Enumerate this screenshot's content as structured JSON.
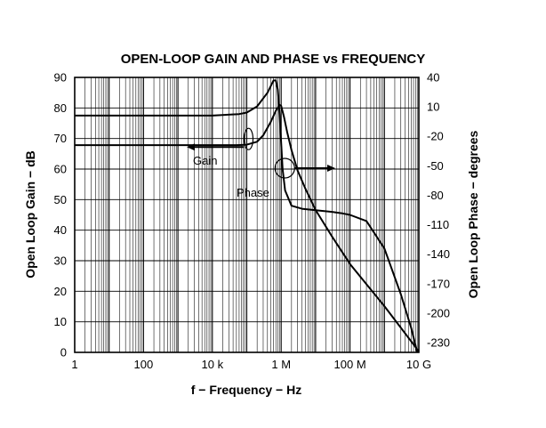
{
  "chart_data": {
    "type": "line",
    "title": "OPEN-LOOP GAIN AND PHASE vs FREQUENCY",
    "xlabel": "f − Frequency − Hz",
    "ylabel_left": "Open Loop Gain − dB",
    "ylabel_right": "Open Loop Phase − degrees",
    "x_scale": "log",
    "xlim": [
      1,
      10000000000
    ],
    "ylim_left": [
      0,
      90
    ],
    "ylim_right": [
      -240,
      40
    ],
    "grid": true,
    "x_ticks": [
      {
        "value": 1,
        "label": "1"
      },
      {
        "value": 100,
        "label": "100"
      },
      {
        "value": 10000,
        "label": "10 k"
      },
      {
        "value": 1000000,
        "label": "1 M"
      },
      {
        "value": 100000000,
        "label": "100 M"
      },
      {
        "value": 10000000000,
        "label": "10 G"
      }
    ],
    "y_ticks_left": [
      {
        "value": 0,
        "label": "0"
      },
      {
        "value": 10,
        "label": "10"
      },
      {
        "value": 20,
        "label": "20"
      },
      {
        "value": 30,
        "label": "30"
      },
      {
        "value": 40,
        "label": "40"
      },
      {
        "value": 50,
        "label": "50"
      },
      {
        "value": 60,
        "label": "60"
      },
      {
        "value": 70,
        "label": "70"
      },
      {
        "value": 80,
        "label": "80"
      },
      {
        "value": 90,
        "label": "90"
      }
    ],
    "y_ticks_right": [
      {
        "value": 40,
        "label": "40"
      },
      {
        "value": 10,
        "label": "10"
      },
      {
        "value": -20,
        "label": "-20"
      },
      {
        "value": -50,
        "label": "-50"
      },
      {
        "value": -80,
        "label": "-80"
      },
      {
        "value": -110,
        "label": "-110"
      },
      {
        "value": -140,
        "label": "-140"
      },
      {
        "value": -170,
        "label": "-170"
      },
      {
        "value": -200,
        "label": "-200"
      },
      {
        "value": -230,
        "label": "-230"
      }
    ],
    "series": [
      {
        "name": "Gain",
        "axis": "left",
        "x": [
          1,
          10000,
          60000,
          100000,
          200000,
          400000,
          600000,
          700000,
          800000,
          900000,
          1100000,
          1300000,
          2000000,
          4000000,
          10000000,
          30000000,
          60000000,
          100000000,
          300000000,
          1000000000,
          3000000000,
          6000000000,
          9000000000
        ],
        "y": [
          77.5,
          77.5,
          78,
          78.5,
          80.5,
          85,
          89,
          89,
          86,
          78,
          60,
          53,
          48,
          47,
          46.5,
          46,
          45.5,
          45,
          43,
          34,
          19,
          8,
          0
        ]
      },
      {
        "name": "Phase",
        "axis": "right",
        "x": [
          1,
          50000,
          100000,
          200000,
          300000,
          500000,
          700000,
          900000,
          1000000,
          1200000,
          1500000,
          2000000,
          3000000,
          5000000,
          10000000,
          30000000,
          100000000,
          1000000000,
          3000000000,
          10000000000
        ],
        "y": [
          -29,
          -29,
          -28.5,
          -25.5,
          -19,
          -5,
          6,
          12,
          11,
          0,
          -16,
          -34,
          -55,
          -73,
          -95,
          -122,
          -150,
          -193,
          -215,
          -239
        ]
      }
    ],
    "annotations": [
      {
        "text": "Gain",
        "series": "Gain",
        "arrow": "left"
      },
      {
        "text": "Phase",
        "series": "Phase",
        "arrow": "right"
      }
    ]
  }
}
